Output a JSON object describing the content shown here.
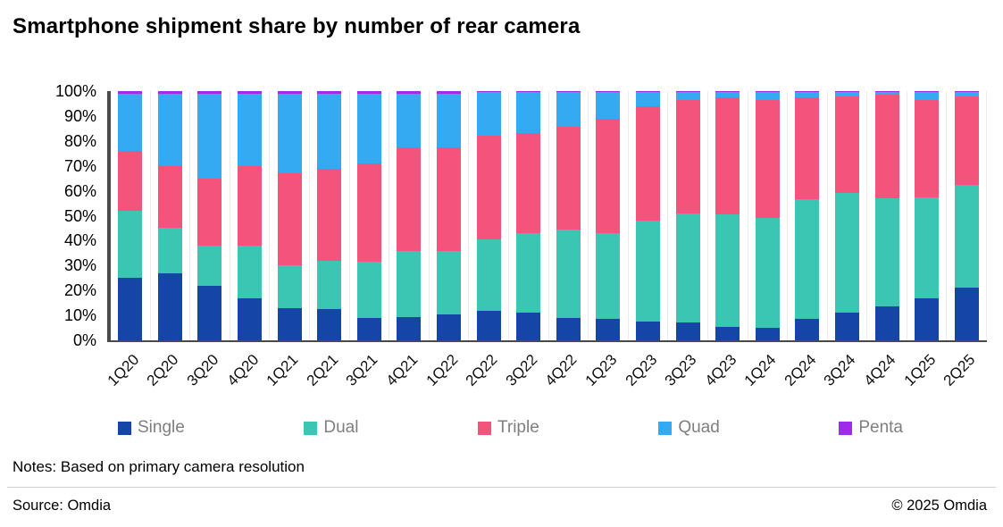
{
  "title": "Smartphone shipment share by number of rear camera",
  "notes": "Notes: Based on primary camera resolution",
  "source": "Source: Omdia",
  "copyright": "© 2025 Omdia",
  "chart_data": {
    "type": "bar",
    "stacked": true,
    "title": "Smartphone shipment share by number of rear camera",
    "xlabel": "",
    "ylabel": "",
    "ylim": [
      0,
      100
    ],
    "ytick_step": 10,
    "ytick_suffix": "%",
    "grid": "vertical-light",
    "legend_position": "bottom",
    "categories": [
      "1Q20",
      "2Q20",
      "3Q20",
      "4Q20",
      "1Q21",
      "2Q21",
      "3Q21",
      "4Q21",
      "1Q22",
      "2Q22",
      "3Q22",
      "4Q22",
      "1Q23",
      "2Q23",
      "3Q23",
      "4Q23",
      "1Q24",
      "2Q24",
      "3Q24",
      "4Q24",
      "1Q25",
      "2Q25"
    ],
    "series": [
      {
        "name": "Single",
        "color": "#1645A8",
        "values": [
          25,
          27,
          22,
          17,
          13,
          12.5,
          9,
          9.5,
          10.5,
          12,
          11,
          9,
          8.5,
          7.5,
          7,
          5.5,
          5,
          8.5,
          11,
          13.5,
          17,
          21
        ]
      },
      {
        "name": "Dual",
        "color": "#3AC6B3",
        "values": [
          27,
          18,
          16,
          21,
          17,
          19.5,
          22.5,
          26.5,
          25.5,
          28.5,
          32,
          35.5,
          34.5,
          40.5,
          44,
          45,
          44,
          48,
          48,
          43.5,
          40.5,
          41.5
        ]
      },
      {
        "name": "Triple",
        "color": "#F4537C",
        "values": [
          24,
          25,
          27,
          32,
          37,
          37,
          39.5,
          41.5,
          41.5,
          41.5,
          40,
          41,
          46,
          46,
          45.5,
          47,
          47.5,
          41,
          39,
          41.5,
          39,
          35.5
        ]
      },
      {
        "name": "Quad",
        "color": "#33AAF2",
        "values": [
          23,
          29,
          34,
          29,
          32,
          30,
          28,
          21.5,
          21.5,
          17.5,
          16.5,
          14,
          10.5,
          5.5,
          3,
          2,
          3,
          2,
          1.5,
          1,
          3,
          1.5
        ]
      },
      {
        "name": "Penta",
        "color": "#A12BEB",
        "values": [
          1,
          1,
          1,
          1,
          1,
          1,
          1,
          1,
          1,
          0.5,
          0.5,
          0.5,
          0.5,
          0.5,
          0.5,
          0.5,
          0.5,
          0.5,
          0.5,
          0.5,
          0.5,
          0.5
        ]
      }
    ]
  }
}
